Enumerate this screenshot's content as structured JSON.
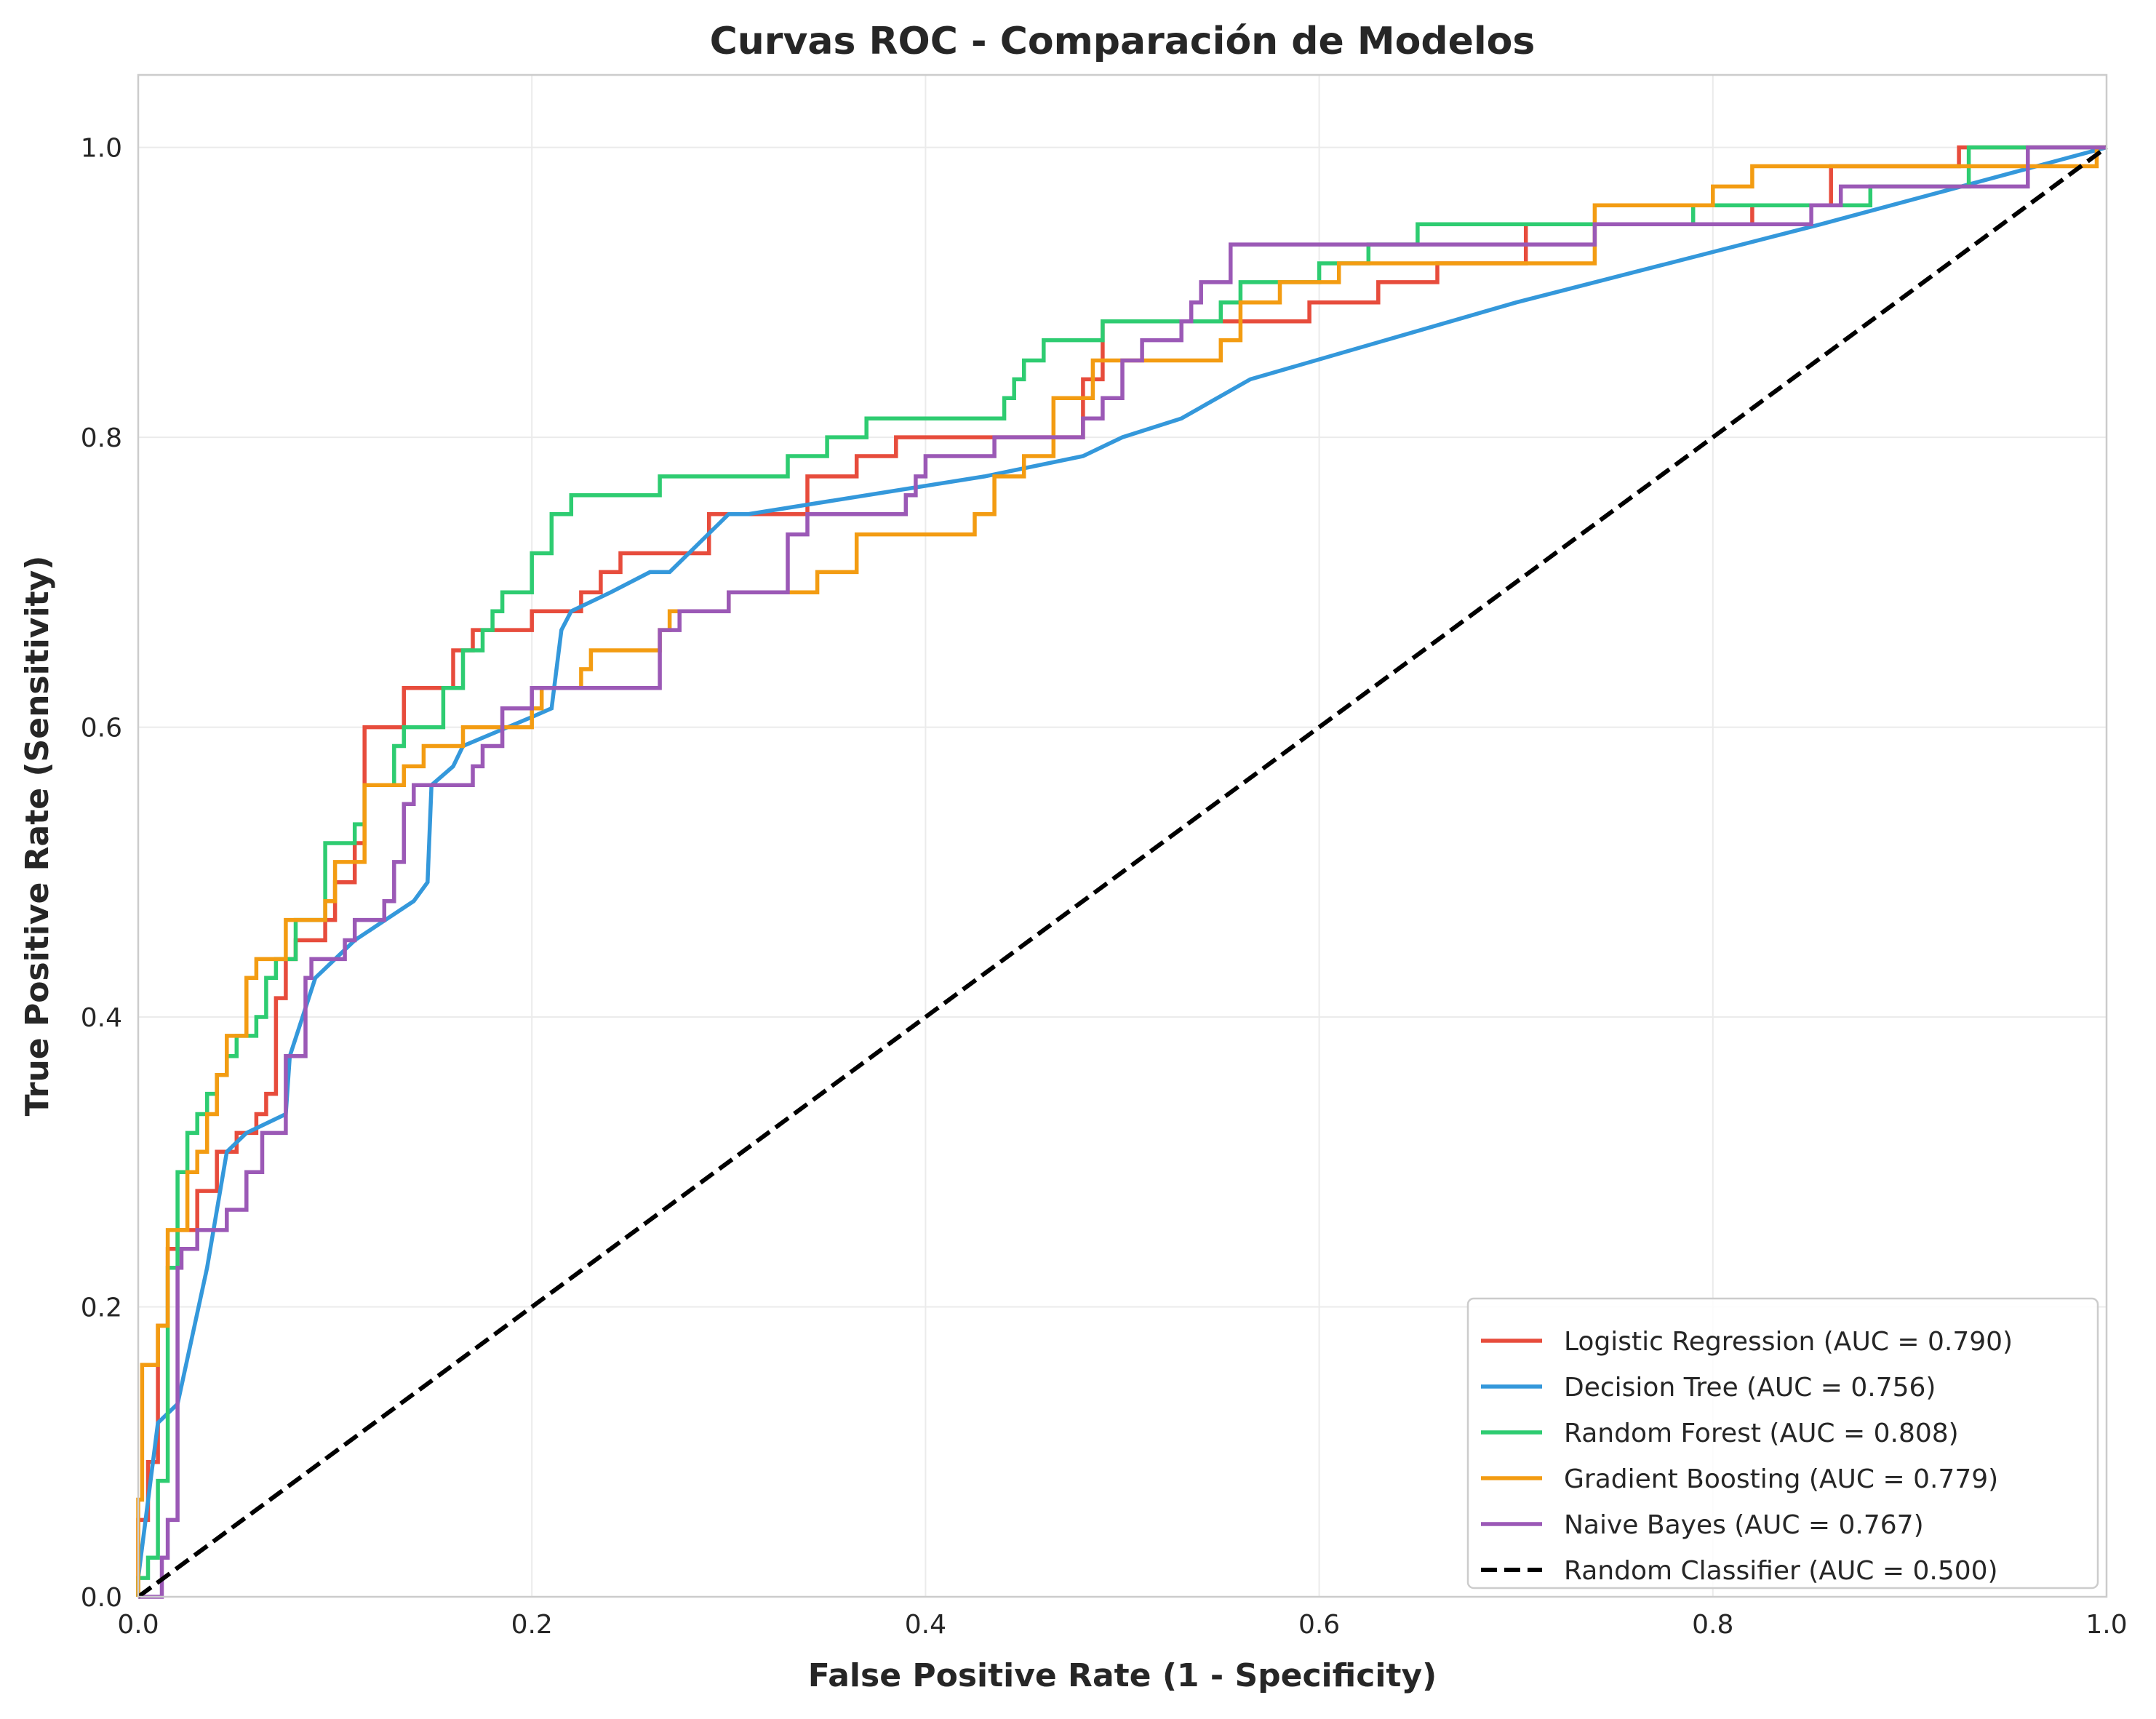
{
  "chart_data": {
    "type": "line",
    "title": "Curvas ROC - Comparación de Modelos",
    "xlabel": "False Positive Rate (1 - Specificity)",
    "ylabel": "True Positive Rate (Sensitivity)",
    "xlim": [
      0.0,
      1.0
    ],
    "ylim": [
      0.0,
      1.05
    ],
    "xticks": [
      "0.0",
      "0.2",
      "0.4",
      "0.6",
      "0.8",
      "1.0"
    ],
    "yticks": [
      "0.0",
      "0.2",
      "0.4",
      "0.6",
      "0.8",
      "1.0"
    ],
    "grid": true,
    "legend_position": "lower-right",
    "series": [
      {
        "name": "Logistic Regression (AUC = 0.790)",
        "color": "#e74c3c",
        "style": "solid",
        "x": [
          0.0,
          0.0,
          0.005,
          0.005,
          0.01,
          0.01,
          0.015,
          0.015,
          0.02,
          0.02,
          0.03,
          0.03,
          0.04,
          0.04,
          0.05,
          0.05,
          0.06,
          0.06,
          0.065,
          0.065,
          0.07,
          0.07,
          0.075,
          0.075,
          0.08,
          0.08,
          0.095,
          0.095,
          0.1,
          0.1,
          0.11,
          0.11,
          0.115,
          0.115,
          0.135,
          0.135,
          0.16,
          0.16,
          0.17,
          0.17,
          0.2,
          0.2,
          0.225,
          0.225,
          0.235,
          0.235,
          0.245,
          0.245,
          0.29,
          0.29,
          0.34,
          0.34,
          0.365,
          0.365,
          0.385,
          0.385,
          0.48,
          0.48,
          0.49,
          0.49,
          0.54,
          0.54,
          0.595,
          0.595,
          0.63,
          0.63,
          0.66,
          0.66,
          0.705,
          0.705,
          0.82,
          0.82,
          0.86,
          0.86,
          0.925,
          0.925,
          1.0
        ],
        "y": [
          0.0,
          0.053,
          0.053,
          0.093,
          0.093,
          0.187,
          0.187,
          0.24,
          0.24,
          0.253,
          0.253,
          0.28,
          0.28,
          0.307,
          0.307,
          0.32,
          0.32,
          0.333,
          0.333,
          0.347,
          0.347,
          0.413,
          0.413,
          0.44,
          0.44,
          0.453,
          0.453,
          0.467,
          0.467,
          0.493,
          0.493,
          0.52,
          0.52,
          0.6,
          0.6,
          0.627,
          0.627,
          0.653,
          0.653,
          0.667,
          0.667,
          0.68,
          0.68,
          0.693,
          0.693,
          0.707,
          0.707,
          0.72,
          0.72,
          0.747,
          0.747,
          0.773,
          0.773,
          0.787,
          0.787,
          0.8,
          0.8,
          0.84,
          0.84,
          0.88,
          0.88,
          0.88,
          0.88,
          0.893,
          0.893,
          0.907,
          0.907,
          0.92,
          0.92,
          0.947,
          0.947,
          0.96,
          0.96,
          0.987,
          0.987,
          1.0,
          1.0
        ]
      },
      {
        "name": "Decision Tree (AUC = 0.756)",
        "color": "#3498db",
        "style": "solid",
        "x": [
          0.0,
          0.01,
          0.02,
          0.035,
          0.045,
          0.055,
          0.075,
          0.077,
          0.09,
          0.1,
          0.11,
          0.14,
          0.147,
          0.149,
          0.16,
          0.165,
          0.2,
          0.21,
          0.215,
          0.22,
          0.24,
          0.26,
          0.27,
          0.3,
          0.31,
          0.43,
          0.48,
          0.5,
          0.53,
          0.565,
          0.7,
          0.855,
          1.0
        ],
        "y": [
          0.013,
          0.12,
          0.133,
          0.227,
          0.307,
          0.32,
          0.333,
          0.373,
          0.427,
          0.44,
          0.453,
          0.48,
          0.493,
          0.56,
          0.573,
          0.587,
          0.607,
          0.613,
          0.667,
          0.68,
          0.693,
          0.707,
          0.707,
          0.747,
          0.747,
          0.773,
          0.787,
          0.8,
          0.813,
          0.84,
          0.893,
          0.947,
          1.0
        ]
      },
      {
        "name": "Random Forest (AUC = 0.808)",
        "color": "#2ecc71",
        "style": "solid",
        "x": [
          0.0,
          0.0,
          0.005,
          0.005,
          0.01,
          0.01,
          0.015,
          0.015,
          0.02,
          0.02,
          0.025,
          0.025,
          0.03,
          0.03,
          0.035,
          0.035,
          0.04,
          0.04,
          0.045,
          0.045,
          0.05,
          0.05,
          0.06,
          0.06,
          0.065,
          0.065,
          0.07,
          0.07,
          0.08,
          0.08,
          0.095,
          0.095,
          0.11,
          0.11,
          0.115,
          0.115,
          0.13,
          0.13,
          0.135,
          0.135,
          0.155,
          0.155,
          0.165,
          0.165,
          0.175,
          0.175,
          0.18,
          0.18,
          0.185,
          0.185,
          0.2,
          0.2,
          0.21,
          0.21,
          0.22,
          0.22,
          0.265,
          0.265,
          0.33,
          0.33,
          0.35,
          0.35,
          0.37,
          0.37,
          0.44,
          0.44,
          0.445,
          0.445,
          0.45,
          0.45,
          0.46,
          0.46,
          0.49,
          0.49,
          0.55,
          0.55,
          0.56,
          0.56,
          0.6,
          0.6,
          0.625,
          0.625,
          0.65,
          0.65,
          0.79,
          0.79,
          0.88,
          0.88,
          0.93,
          0.93,
          1.0
        ],
        "y": [
          0.0,
          0.013,
          0.013,
          0.027,
          0.027,
          0.08,
          0.08,
          0.227,
          0.227,
          0.293,
          0.293,
          0.32,
          0.32,
          0.333,
          0.333,
          0.347,
          0.347,
          0.36,
          0.36,
          0.373,
          0.373,
          0.387,
          0.387,
          0.4,
          0.4,
          0.427,
          0.427,
          0.44,
          0.44,
          0.467,
          0.467,
          0.52,
          0.52,
          0.533,
          0.533,
          0.56,
          0.56,
          0.587,
          0.587,
          0.6,
          0.6,
          0.627,
          0.627,
          0.653,
          0.653,
          0.667,
          0.667,
          0.68,
          0.68,
          0.693,
          0.693,
          0.72,
          0.72,
          0.747,
          0.747,
          0.76,
          0.76,
          0.773,
          0.773,
          0.787,
          0.787,
          0.8,
          0.8,
          0.813,
          0.813,
          0.827,
          0.827,
          0.84,
          0.84,
          0.853,
          0.853,
          0.867,
          0.867,
          0.88,
          0.88,
          0.893,
          0.893,
          0.907,
          0.907,
          0.92,
          0.92,
          0.933,
          0.933,
          0.947,
          0.947,
          0.96,
          0.96,
          0.973,
          0.973,
          1.0,
          1.0
        ]
      },
      {
        "name": "Gradient Boosting (AUC = 0.779)",
        "color": "#f39c12",
        "style": "solid",
        "x": [
          0.0,
          0.0,
          0.002,
          0.002,
          0.01,
          0.01,
          0.015,
          0.015,
          0.025,
          0.025,
          0.03,
          0.03,
          0.035,
          0.035,
          0.04,
          0.04,
          0.045,
          0.045,
          0.055,
          0.055,
          0.06,
          0.06,
          0.075,
          0.075,
          0.085,
          0.085,
          0.095,
          0.095,
          0.1,
          0.1,
          0.115,
          0.115,
          0.135,
          0.135,
          0.145,
          0.145,
          0.165,
          0.165,
          0.2,
          0.2,
          0.205,
          0.205,
          0.225,
          0.225,
          0.23,
          0.23,
          0.265,
          0.265,
          0.27,
          0.27,
          0.3,
          0.3,
          0.345,
          0.345,
          0.365,
          0.365,
          0.425,
          0.425,
          0.435,
          0.435,
          0.45,
          0.45,
          0.465,
          0.465,
          0.485,
          0.485,
          0.5,
          0.5,
          0.51,
          0.51,
          0.55,
          0.55,
          0.56,
          0.56,
          0.58,
          0.58,
          0.61,
          0.61,
          0.74,
          0.74,
          0.8,
          0.8,
          0.82,
          0.82,
          0.83,
          0.83,
          0.995,
          0.995,
          1.0
        ],
        "y": [
          0.0,
          0.067,
          0.067,
          0.16,
          0.16,
          0.187,
          0.187,
          0.253,
          0.253,
          0.293,
          0.293,
          0.307,
          0.307,
          0.333,
          0.333,
          0.36,
          0.36,
          0.387,
          0.387,
          0.427,
          0.427,
          0.44,
          0.44,
          0.467,
          0.467,
          0.467,
          0.467,
          0.48,
          0.48,
          0.507,
          0.507,
          0.56,
          0.56,
          0.573,
          0.573,
          0.587,
          0.587,
          0.6,
          0.6,
          0.613,
          0.613,
          0.627,
          0.627,
          0.64,
          0.64,
          0.653,
          0.653,
          0.667,
          0.667,
          0.68,
          0.68,
          0.693,
          0.693,
          0.707,
          0.707,
          0.733,
          0.733,
          0.747,
          0.747,
          0.773,
          0.773,
          0.787,
          0.787,
          0.827,
          0.827,
          0.853,
          0.853,
          0.853,
          0.853,
          0.853,
          0.853,
          0.867,
          0.867,
          0.893,
          0.893,
          0.907,
          0.907,
          0.92,
          0.92,
          0.96,
          0.96,
          0.973,
          0.973,
          0.987,
          0.987,
          0.987,
          0.987,
          1.0,
          1.0
        ]
      },
      {
        "name": "Naive Bayes (AUC = 0.767)",
        "color": "#9b59b6",
        "style": "solid",
        "x": [
          0.0,
          0.012,
          0.012,
          0.015,
          0.015,
          0.02,
          0.02,
          0.022,
          0.022,
          0.03,
          0.03,
          0.04,
          0.04,
          0.045,
          0.045,
          0.055,
          0.055,
          0.063,
          0.063,
          0.075,
          0.075,
          0.085,
          0.085,
          0.088,
          0.088,
          0.095,
          0.095,
          0.105,
          0.105,
          0.11,
          0.11,
          0.125,
          0.125,
          0.13,
          0.13,
          0.135,
          0.135,
          0.138,
          0.138,
          0.14,
          0.14,
          0.145,
          0.145,
          0.17,
          0.17,
          0.175,
          0.175,
          0.185,
          0.185,
          0.2,
          0.2,
          0.265,
          0.265,
          0.275,
          0.275,
          0.3,
          0.3,
          0.33,
          0.33,
          0.34,
          0.34,
          0.39,
          0.39,
          0.395,
          0.395,
          0.4,
          0.4,
          0.435,
          0.435,
          0.48,
          0.48,
          0.49,
          0.49,
          0.5,
          0.5,
          0.51,
          0.51,
          0.53,
          0.53,
          0.535,
          0.535,
          0.54,
          0.54,
          0.555,
          0.555,
          0.71,
          0.71,
          0.74,
          0.74,
          0.85,
          0.85,
          0.865,
          0.865,
          0.96,
          0.96,
          1.0
        ],
        "y": [
          0.0,
          0.0,
          0.027,
          0.027,
          0.053,
          0.053,
          0.227,
          0.227,
          0.24,
          0.24,
          0.253,
          0.253,
          0.253,
          0.253,
          0.267,
          0.267,
          0.293,
          0.293,
          0.32,
          0.32,
          0.373,
          0.373,
          0.427,
          0.427,
          0.44,
          0.44,
          0.44,
          0.44,
          0.453,
          0.453,
          0.467,
          0.467,
          0.48,
          0.48,
          0.507,
          0.507,
          0.547,
          0.547,
          0.547,
          0.547,
          0.56,
          0.56,
          0.56,
          0.56,
          0.573,
          0.573,
          0.587,
          0.587,
          0.613,
          0.613,
          0.627,
          0.627,
          0.667,
          0.667,
          0.68,
          0.68,
          0.693,
          0.693,
          0.733,
          0.733,
          0.747,
          0.747,
          0.76,
          0.76,
          0.773,
          0.773,
          0.787,
          0.787,
          0.8,
          0.8,
          0.813,
          0.813,
          0.827,
          0.827,
          0.853,
          0.853,
          0.867,
          0.867,
          0.88,
          0.88,
          0.893,
          0.893,
          0.907,
          0.907,
          0.933,
          0.933,
          0.933,
          0.933,
          0.947,
          0.947,
          0.96,
          0.96,
          0.973,
          0.973,
          1.0,
          1.0
        ]
      },
      {
        "name": "Random Classifier (AUC = 0.500)",
        "color": "#000000",
        "style": "dashed",
        "x": [
          0.0,
          1.0
        ],
        "y": [
          0.0,
          1.0
        ]
      }
    ]
  }
}
